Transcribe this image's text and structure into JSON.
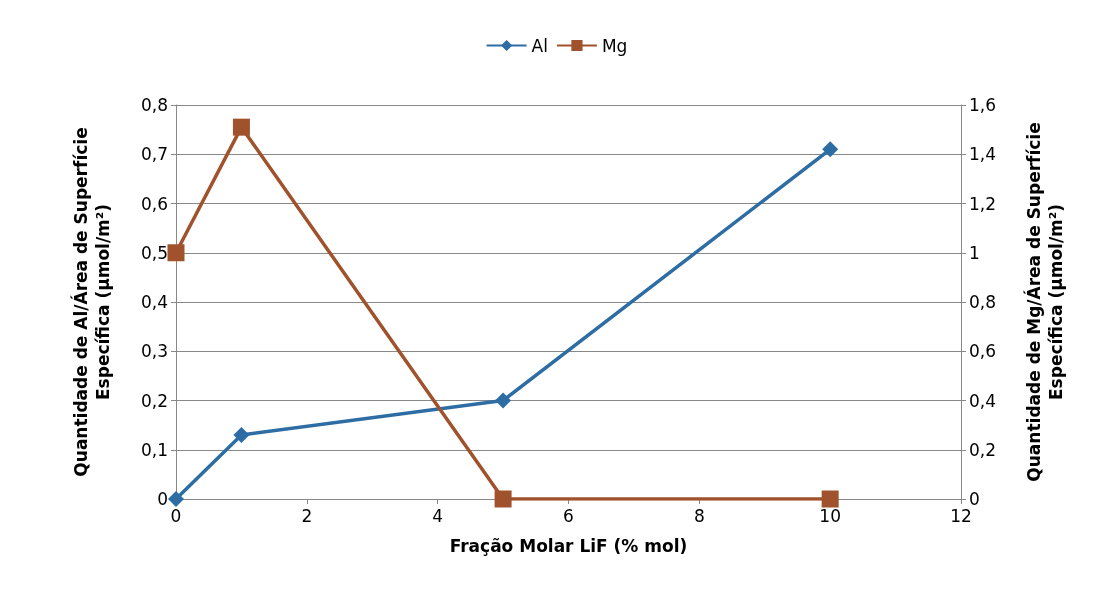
{
  "chart_data": {
    "type": "line",
    "xlabel": "Fração Molar LiF (% mol)",
    "ylabel": "Quantidade de Al/Área de Superfície Específica (µmol/m²)",
    "y2label": "Quantidade de Mg/Área de Superfície Específica (µmol/m²)",
    "x": [
      0,
      1,
      5,
      10
    ],
    "series": [
      {
        "name": "Al",
        "color": "#2e6da4",
        "marker": "diamond",
        "values": [
          0,
          0.13,
          0.2,
          0.71
        ]
      },
      {
        "name": "Mg",
        "color": "#a0522d",
        "marker": "square",
        "axis": "y2",
        "values": [
          1.0,
          1.51,
          0,
          0
        ]
      }
    ],
    "xlim": [
      0,
      12
    ],
    "xticks": [
      0,
      2,
      4,
      6,
      8,
      10,
      12
    ],
    "ylim": [
      0,
      0.8
    ],
    "yticks": [
      0,
      {
        "value": 0.1,
        "label": "0,1"
      },
      {
        "value": 0.2,
        "label": "0,2"
      },
      {
        "value": 0.3,
        "label": "0,3"
      },
      {
        "value": 0.4,
        "label": "0,4"
      },
      {
        "value": 0.5,
        "label": "0,5"
      },
      {
        "value": 0.6,
        "label": "0,6"
      },
      {
        "value": 0.7,
        "label": "0,7"
      },
      {
        "value": 0.8,
        "label": "0,8"
      }
    ],
    "y2lim": [
      0,
      1.6
    ],
    "y2ticks": [
      0,
      {
        "value": 0.2,
        "label": "0,2"
      },
      {
        "value": 0.4,
        "label": "0,4"
      },
      {
        "value": 0.6,
        "label": "0,6"
      },
      {
        "value": 0.8,
        "label": "0,8"
      },
      1,
      {
        "value": 1.2,
        "label": "1,2"
      },
      {
        "value": 1.4,
        "label": "1,4"
      },
      {
        "value": 1.6,
        "label": "1,6"
      }
    ],
    "grid": "y",
    "legend": "top",
    "line_style": "solid"
  }
}
